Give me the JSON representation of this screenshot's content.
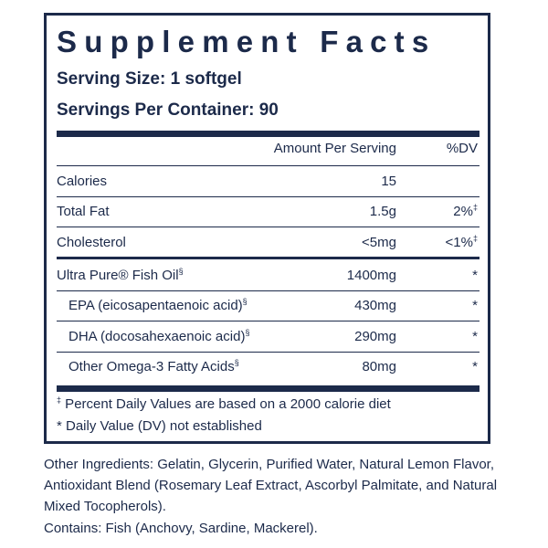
{
  "panel": {
    "title": "Supplement Facts",
    "serving_size": "Serving Size: 1 softgel",
    "servings_per_container": "Servings Per Container: 90"
  },
  "table": {
    "header_amount": "Amount Per Serving",
    "header_dv": "%DV",
    "calories": {
      "name": "Calories",
      "amount": "15",
      "dv": ""
    },
    "total_fat": {
      "name": "Total Fat",
      "amount": "1.5g",
      "dv": "2%",
      "dv_mark": "‡"
    },
    "cholesterol": {
      "name": "Cholesterol",
      "amount": "<5mg",
      "dv": "<1%",
      "dv_mark": "‡"
    },
    "fish_oil": {
      "name": "Ultra Pure® Fish Oil",
      "mark": "§",
      "amount": "1400mg",
      "dv": "*"
    },
    "epa": {
      "name": "EPA (eicosapentaenoic acid)",
      "mark": "§",
      "amount": "430mg",
      "dv": "*"
    },
    "dha": {
      "name": "DHA (docosahexaenoic acid)",
      "mark": "§",
      "amount": "290mg",
      "dv": "*"
    },
    "omega3": {
      "name": "Other Omega-3 Fatty Acids",
      "mark": "§",
      "amount": "80mg",
      "dv": "*"
    }
  },
  "footnotes": {
    "percent_mark": "‡",
    "percent_text": " Percent Daily Values are based on a 2000 calorie diet",
    "dv_text": "* Daily Value (DV) not established"
  },
  "other_ingredients": "Other Ingredients: Gelatin, Glycerin, Purified Water, Natural Lemon Flavor, Antioxidant Blend (Rosemary Leaf Extract, Ascorbyl Palmitate, and Natural Mixed Tocopherols).",
  "contains": "Contains: Fish (Anchovy, Sardine, Mackerel)."
}
